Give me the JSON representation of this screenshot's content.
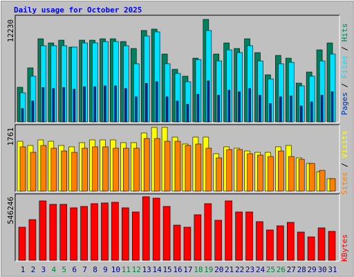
{
  "title": "Daily usage for October 2025",
  "categories": [
    "1",
    "2",
    "3",
    "4",
    "5",
    "6",
    "7",
    "8",
    "9",
    "10",
    "11",
    "12",
    "13",
    "14",
    "15",
    "16",
    "17",
    "18",
    "19",
    "20",
    "21",
    "22",
    "23",
    "24",
    "25",
    "26",
    "27",
    "28",
    "29",
    "30",
    "31"
  ],
  "category_colors": [
    "#000080",
    "#000080",
    "#000080",
    "#008040",
    "#008040",
    "#000080",
    "#000080",
    "#000080",
    "#000080",
    "#000080",
    "#008040",
    "#008040",
    "#000080",
    "#000080",
    "#000080",
    "#000080",
    "#000080",
    "#008040",
    "#008040",
    "#000080",
    "#000080",
    "#000080",
    "#000080",
    "#000080",
    "#008040",
    "#008040",
    "#000080",
    "#000080",
    "#000080",
    "#000080",
    "#000080"
  ],
  "label_separator": "/",
  "chart_data": [
    {
      "type": "bar",
      "ylim": [
        0,
        12230
      ],
      "yticks": [
        12230
      ],
      "series": [
        {
          "name": "Hits",
          "color": "#00805c",
          "values": [
            4132,
            6446,
            9916,
            9420,
            9751,
            8925,
            9751,
            9751,
            9916,
            9916,
            9586,
            8759,
            10908,
            11073,
            8098,
            6280,
            5454,
            7602,
            12230,
            8098,
            9420,
            8759,
            9916,
            8264,
            5619,
            7933,
            7602,
            4627,
            5950,
            8594,
            9420
          ]
        },
        {
          "name": "Files",
          "color": "#00e0ff",
          "values": [
            3471,
            5454,
            9090,
            9090,
            9090,
            8925,
            9420,
            9420,
            9586,
            9586,
            9090,
            6941,
            10247,
            10743,
            6941,
            5784,
            4793,
            7437,
            10908,
            7272,
            8594,
            8264,
            9090,
            7272,
            5123,
            6941,
            7107,
            4297,
            5454,
            7272,
            8098
          ]
        },
        {
          "name": "Pages",
          "color": "#0030a0",
          "values": [
            1600,
            2500,
            4100,
            4000,
            4100,
            3900,
            4200,
            4200,
            4300,
            4300,
            4000,
            3000,
            4600,
            4800,
            3000,
            2500,
            2100,
            3300,
            4900,
            3200,
            3800,
            3600,
            4000,
            3200,
            2200,
            3000,
            3100,
            1900,
            2400,
            3200,
            3600
          ]
        }
      ]
    },
    {
      "type": "bar",
      "ylim": [
        0,
        1761
      ],
      "yticks": [
        1761
      ],
      "series": [
        {
          "name": "Visits",
          "color": "#ffff00",
          "values": [
            1378,
            1263,
            1416,
            1378,
            1263,
            1225,
            1340,
            1416,
            1416,
            1416,
            1340,
            1340,
            1608,
            1761,
            1761,
            1493,
            1302,
            1493,
            1493,
            1034,
            1225,
            1187,
            1110,
            1072,
            1072,
            1225,
            1263,
            919,
            766,
            536,
            345
          ]
        },
        {
          "name": "Sites",
          "color": "#ff8000",
          "values": [
            1225,
            1072,
            1263,
            1187,
            1110,
            1072,
            1187,
            1225,
            1225,
            1187,
            1187,
            1187,
            1455,
            1455,
            1378,
            1378,
            1263,
            1302,
            1187,
            919,
            1149,
            1149,
            1034,
            996,
            957,
            1110,
            957,
            881,
            766,
            574,
            345
          ]
        }
      ]
    },
    {
      "type": "bar",
      "ylim": [
        0,
        546246
      ],
      "yticks": [
        546246
      ],
      "series": [
        {
          "name": "KBytes",
          "color": "#ff0000",
          "values": [
            284998,
            350310,
            510621,
            480934,
            480934,
            451247,
            463122,
            486871,
            492809,
            498746,
            451247,
            415622,
            546246,
            534371,
            463122,
            302811,
            284998,
            391872,
            486871,
            344373,
            510621,
            415622,
            415622,
            332498,
            261248,
            296873,
            326560,
            243436,
            201873,
            279060,
            249370
          ]
        }
      ]
    }
  ]
}
